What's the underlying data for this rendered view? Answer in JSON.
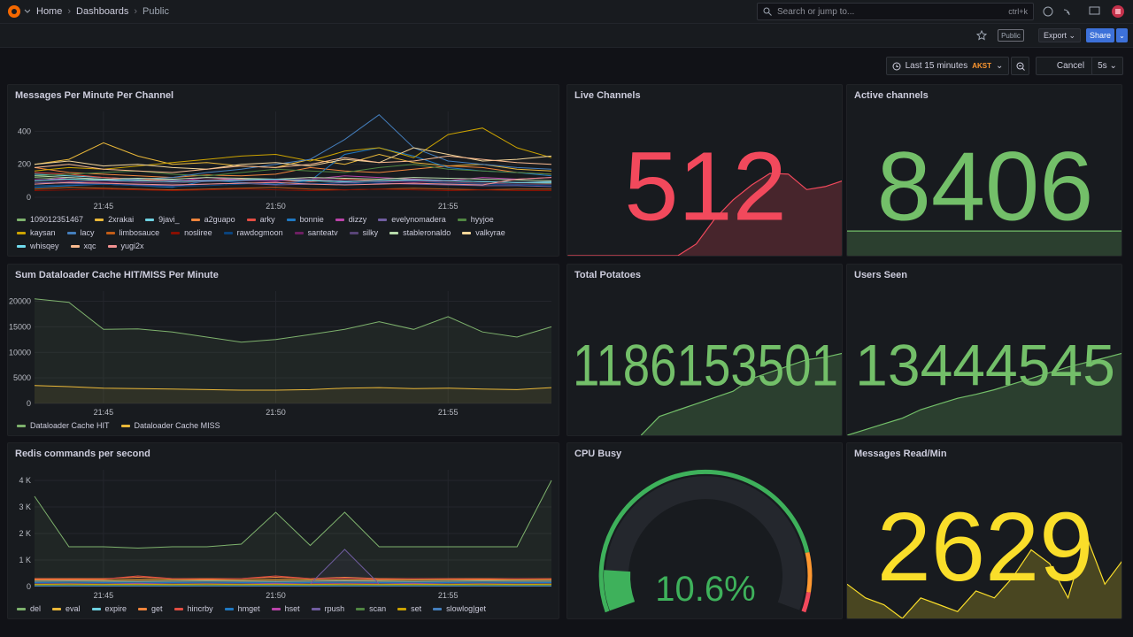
{
  "nav": {
    "breadcrumbs": [
      "Home",
      "Dashboards",
      "Public"
    ],
    "search_placeholder": "Search or jump to...",
    "shortcut": "ctrl+k"
  },
  "toolbar": {
    "badge": "Public",
    "export": "Export",
    "share": "Share"
  },
  "time_picker": {
    "range": "Last 15 minutes",
    "timezone": "AKST",
    "cancel": "Cancel",
    "refresh": "5s"
  },
  "chart_data": [
    {
      "type": "line",
      "title": "Messages Per Minute Per Channel",
      "categories": [
        null,
        null,
        "21:45",
        null,
        null,
        null,
        null,
        "21:50",
        null,
        null,
        null,
        null,
        "21:55",
        null,
        null,
        null
      ],
      "ylim": [
        0,
        520
      ],
      "yticks": [
        0,
        200,
        400
      ],
      "grid": true,
      "series": [
        {
          "name": "109012351467",
          "color": "#7EB26D",
          "values": [
            120,
            110,
            100,
            105,
            95,
            100,
            110,
            100,
            105,
            95,
            100,
            110,
            100,
            95,
            90,
            85
          ]
        },
        {
          "name": "2xrakai",
          "color": "#EAB839",
          "values": [
            200,
            230,
            330,
            250,
            200,
            210,
            190,
            180,
            230,
            200,
            260,
            210,
            190,
            200,
            170,
            160
          ]
        },
        {
          "name": "9javi_",
          "color": "#6ED0E0",
          "values": [
            140,
            130,
            120,
            110,
            105,
            100,
            110,
            105,
            100,
            95,
            100,
            105,
            100,
            95,
            90,
            95
          ]
        },
        {
          "name": "a2guapo",
          "color": "#EF843C",
          "values": [
            180,
            150,
            140,
            130,
            120,
            135,
            130,
            140,
            180,
            160,
            150,
            170,
            190,
            180,
            150,
            140
          ]
        },
        {
          "name": "arky",
          "color": "#E24D42",
          "values": [
            150,
            140,
            120,
            110,
            100,
            105,
            110,
            100,
            95,
            110,
            100,
            95,
            90,
            85,
            80,
            80
          ]
        },
        {
          "name": "bonnie",
          "color": "#1F78C1",
          "values": [
            60,
            70,
            80,
            70,
            60,
            100,
            90,
            80,
            100,
            260,
            300,
            250,
            180,
            160,
            150,
            130
          ]
        },
        {
          "name": "dizzy",
          "color": "#BA43A9",
          "values": [
            100,
            120,
            110,
            100,
            95,
            120,
            105,
            100,
            110,
            130,
            120,
            110,
            100,
            120,
            110,
            120
          ]
        },
        {
          "name": "evelynomadera",
          "color": "#705DA0",
          "values": [
            90,
            85,
            80,
            75,
            70,
            80,
            85,
            75,
            80,
            90,
            85,
            80,
            75,
            70,
            70,
            65
          ]
        },
        {
          "name": "hyyjoe",
          "color": "#508642",
          "values": [
            130,
            140,
            150,
            160,
            140,
            130,
            150,
            170,
            160,
            150,
            180,
            200,
            170,
            160,
            150,
            140
          ]
        },
        {
          "name": "kaysan",
          "color": "#CCA300",
          "values": [
            160,
            180,
            170,
            190,
            210,
            230,
            250,
            260,
            220,
            280,
            300,
            240,
            380,
            420,
            300,
            240
          ]
        },
        {
          "name": "lacy",
          "color": "#447EBC",
          "values": [
            80,
            90,
            100,
            110,
            120,
            150,
            170,
            200,
            230,
            350,
            500,
            300,
            220,
            200,
            180,
            170
          ]
        },
        {
          "name": "limbosauce",
          "color": "#C15C17",
          "values": [
            50,
            60,
            55,
            50,
            45,
            50,
            55,
            60,
            50,
            45,
            50,
            55,
            50,
            45,
            50,
            50
          ]
        },
        {
          "name": "nosliree",
          "color": "#890F02",
          "values": [
            40,
            45,
            50,
            45,
            40,
            45,
            50,
            45,
            40,
            45,
            50,
            45,
            40,
            45,
            40,
            40
          ]
        },
        {
          "name": "rawdogmoon",
          "color": "#0A437C",
          "values": [
            70,
            75,
            80,
            70,
            65,
            70,
            80,
            90,
            85,
            80,
            90,
            95,
            85,
            80,
            75,
            70
          ]
        },
        {
          "name": "santeatv",
          "color": "#6D1F62",
          "values": [
            110,
            100,
            90,
            95,
            100,
            105,
            100,
            95,
            120,
            100,
            95,
            90,
            100,
            95,
            90,
            90
          ]
        },
        {
          "name": "silky",
          "color": "#584477",
          "values": [
            90,
            95,
            100,
            90,
            85,
            95,
            100,
            105,
            110,
            100,
            95,
            100,
            90,
            85,
            80,
            80
          ]
        },
        {
          "name": "stableronaldo",
          "color": "#B7DBAB",
          "values": [
            130,
            120,
            110,
            115,
            110,
            120,
            115,
            110,
            120,
            115,
            110,
            120,
            115,
            110,
            105,
            100
          ]
        },
        {
          "name": "valkyrae",
          "color": "#F4D598",
          "values": [
            200,
            220,
            190,
            200,
            180,
            170,
            200,
            210,
            190,
            230,
            210,
            300,
            260,
            220,
            230,
            250
          ]
        },
        {
          "name": "whisqey",
          "color": "#70DBED",
          "values": [
            100,
            110,
            105,
            100,
            95,
            100,
            105,
            110,
            100,
            95,
            100,
            105,
            100,
            95,
            90,
            90
          ]
        },
        {
          "name": "xqc",
          "color": "#F9BA8F",
          "values": [
            180,
            200,
            170,
            160,
            150,
            170,
            190,
            180,
            200,
            240,
            210,
            220,
            250,
            230,
            210,
            200
          ]
        },
        {
          "name": "yugi2x",
          "color": "#F29191",
          "values": [
            80,
            90,
            85,
            80,
            75,
            80,
            85,
            90,
            80,
            75,
            80,
            85,
            80,
            75,
            110,
            120
          ]
        }
      ]
    },
    {
      "type": "line",
      "title": "Sum Dataloader Cache HIT/MISS Per Minute",
      "fill": true,
      "categories": [
        null,
        null,
        "21:45",
        null,
        null,
        null,
        null,
        "21:50",
        null,
        null,
        null,
        null,
        "21:55",
        null,
        null,
        null
      ],
      "ylim": [
        0,
        22000
      ],
      "yticks": [
        0,
        5000,
        10000,
        15000,
        20000
      ],
      "grid": true,
      "series": [
        {
          "name": "Dataloader Cache HIT",
          "color": "#7EB26D",
          "values": [
            20500,
            19800,
            14500,
            14600,
            14000,
            13000,
            12000,
            12500,
            13500,
            14500,
            16000,
            14500,
            17000,
            14000,
            13000,
            15000
          ]
        },
        {
          "name": "Dataloader Cache MISS",
          "color": "#EAB839",
          "values": [
            3500,
            3300,
            3000,
            2900,
            2800,
            2700,
            2600,
            2600,
            2700,
            3000,
            3100,
            2900,
            3000,
            2800,
            2700,
            3100
          ]
        }
      ]
    },
    {
      "type": "line",
      "title": "Redis commands per second",
      "fill": true,
      "categories": [
        null,
        null,
        "21:45",
        null,
        null,
        null,
        null,
        "21:50",
        null,
        null,
        null,
        null,
        "21:55",
        null,
        null,
        null
      ],
      "ylim": [
        0,
        4400
      ],
      "yticks": [
        0,
        {
          "value": 1000,
          "label": "1 K"
        },
        {
          "value": 2000,
          "label": "2 K"
        },
        {
          "value": 3000,
          "label": "3 K"
        },
        {
          "value": 4000,
          "label": "4 K"
        }
      ],
      "grid": true,
      "series": [
        {
          "name": "del",
          "color": "#7EB26D",
          "values": [
            3400,
            1500,
            1500,
            1450,
            1500,
            1500,
            1600,
            2800,
            1550,
            2800,
            1500,
            1500,
            1500,
            1500,
            1500,
            4000
          ]
        },
        {
          "name": "eval",
          "color": "#EAB839",
          "values": [
            250,
            250,
            240,
            250,
            260,
            250,
            240,
            250,
            260,
            250,
            240,
            250,
            260,
            250,
            250,
            260
          ]
        },
        {
          "name": "expire",
          "color": "#6ED0E0",
          "values": [
            200,
            210,
            200,
            190,
            200,
            210,
            200,
            190,
            200,
            210,
            200,
            190,
            200,
            210,
            200,
            200
          ]
        },
        {
          "name": "get",
          "color": "#EF843C",
          "values": [
            300,
            300,
            300,
            350,
            300,
            300,
            300,
            350,
            300,
            350,
            300,
            300,
            300,
            300,
            300,
            300
          ]
        },
        {
          "name": "hincrby",
          "color": "#E24D42",
          "values": [
            280,
            270,
            280,
            400,
            300,
            280,
            300,
            400,
            300,
            320,
            280,
            300,
            290,
            280,
            300,
            290
          ]
        },
        {
          "name": "hmget",
          "color": "#1F78C1",
          "values": [
            150,
            160,
            150,
            140,
            150,
            160,
            150,
            140,
            150,
            160,
            150,
            140,
            150,
            160,
            150,
            150
          ]
        },
        {
          "name": "hset",
          "color": "#BA43A9",
          "values": [
            100,
            110,
            100,
            120,
            100,
            110,
            100,
            120,
            100,
            110,
            100,
            120,
            100,
            110,
            100,
            100
          ]
        },
        {
          "name": "rpush",
          "color": "#705DA0",
          "values": [
            100,
            100,
            100,
            100,
            100,
            100,
            100,
            100,
            100,
            1400,
            100,
            100,
            100,
            100,
            100,
            100
          ]
        },
        {
          "name": "scan",
          "color": "#508642",
          "values": [
            50,
            50,
            50,
            50,
            50,
            50,
            50,
            50,
            50,
            50,
            50,
            50,
            50,
            50,
            50,
            50
          ]
        },
        {
          "name": "set",
          "color": "#CCA300",
          "values": [
            80,
            90,
            80,
            85,
            80,
            90,
            80,
            85,
            80,
            90,
            80,
            85,
            80,
            90,
            80,
            85
          ]
        },
        {
          "name": "slowlog|get",
          "color": "#447EBC",
          "values": [
            20,
            20,
            20,
            20,
            20,
            20,
            20,
            20,
            20,
            20,
            20,
            20,
            20,
            20,
            20,
            20
          ]
        }
      ]
    },
    {
      "type": "stat",
      "title": "Live Channels",
      "value": 512,
      "color": "#F2495C",
      "sparkline": [
        0,
        0,
        0,
        0,
        0,
        0,
        0,
        80,
        250,
        380,
        480,
        560,
        555,
        450,
        470,
        512
      ]
    },
    {
      "type": "stat",
      "title": "Active channels",
      "value": 8406,
      "color": "#73BF69",
      "sparkline": [
        8406,
        8406,
        8406,
        8406,
        8406,
        8406,
        8406,
        8406,
        8406,
        8406,
        8406,
        8406,
        8406,
        8406,
        8406,
        8406
      ]
    },
    {
      "type": "stat",
      "title": "Total Potatoes",
      "value": 1186153501,
      "color": "#73BF69",
      "sparkline": [
        null,
        null,
        null,
        null,
        1185500000,
        1185650000,
        1185700000,
        1185750000,
        1185800000,
        1185850000,
        1185950000,
        1186000000,
        1186050000,
        1186100000,
        1186120000,
        1186153501
      ]
    },
    {
      "type": "stat",
      "title": "Users Seen",
      "value": 13444545,
      "color": "#73BF69",
      "sparkline": [
        13300000,
        13310000,
        13320000,
        13330000,
        13345000,
        13355000,
        13365000,
        13372000,
        13380000,
        13390000,
        13400000,
        13410000,
        13420000,
        13428000,
        13436000,
        13444545
      ]
    },
    {
      "type": "gauge",
      "title": "CPU Busy",
      "values": [
        10.6
      ],
      "value_labels": [
        "10.6%"
      ],
      "ylim": [
        0,
        100
      ],
      "color": "#3EB15B",
      "thresholds": [
        {
          "value": 0,
          "color": "#3EB15B"
        },
        {
          "value": 85,
          "color": "#FF9830"
        },
        {
          "value": 95,
          "color": "#F2495C"
        }
      ]
    },
    {
      "type": "stat",
      "title": "Messages Read/Min",
      "value": 2629,
      "color": "#FADE2A",
      "sparkline": [
        2450,
        2350,
        2300,
        2200,
        2350,
        2300,
        2250,
        2400,
        2350,
        2500,
        2700,
        2600,
        2350,
        2800,
        2450,
        2629
      ]
    }
  ]
}
